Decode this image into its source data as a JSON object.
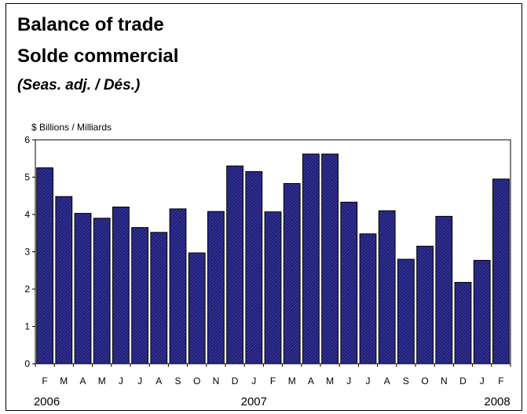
{
  "chart_data": {
    "type": "bar",
    "title": "Balance of trade",
    "subtitle": "Solde commercial",
    "note": "(Seas. adj. / Dés.)",
    "ylabel": "$ Billions / Milliards",
    "xlabel": "",
    "ylim": [
      0,
      6
    ],
    "yticks": [
      0,
      1,
      2,
      3,
      4,
      5,
      6
    ],
    "grid": false,
    "legend": "none",
    "bar_color": "#1f1f7a",
    "categories": [
      "F",
      "M",
      "A",
      "M",
      "J",
      "J",
      "A",
      "S",
      "O",
      "N",
      "D",
      "J",
      "F",
      "M",
      "A",
      "M",
      "J",
      "J",
      "A",
      "S",
      "O",
      "N",
      "D",
      "J",
      "F"
    ],
    "values": [
      5.25,
      4.48,
      4.03,
      3.9,
      4.2,
      3.65,
      3.52,
      4.15,
      2.97,
      4.08,
      5.3,
      5.15,
      4.07,
      4.83,
      5.62,
      5.62,
      4.33,
      3.48,
      4.1,
      2.8,
      3.15,
      3.95,
      2.18,
      2.77,
      4.95
    ],
    "years": [
      "2006",
      "2007",
      "2008"
    ]
  }
}
